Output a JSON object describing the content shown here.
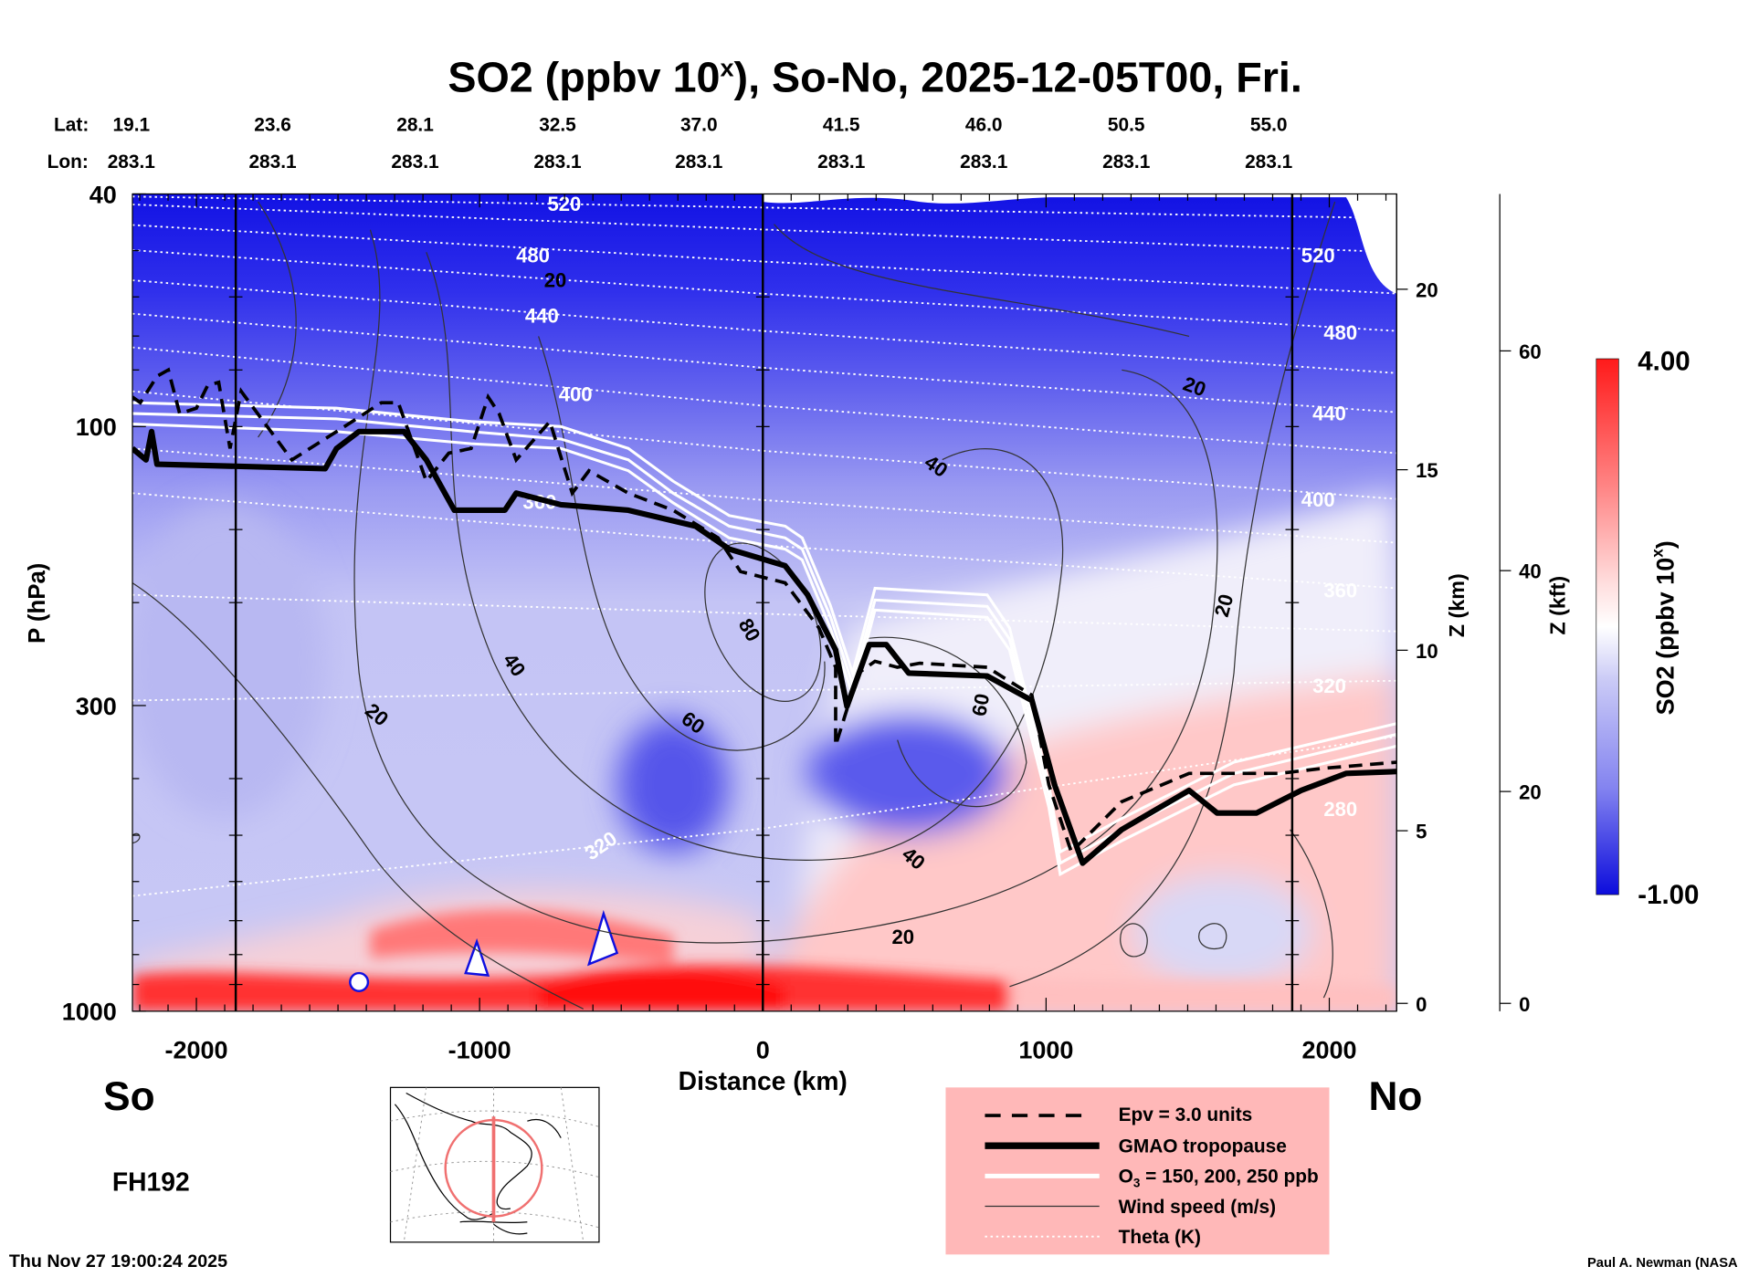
{
  "title": "SO2 (ppbv 10",
  "title_sup": "x",
  "title_rest": "), So-No, 2025-12-05T00, Fri.",
  "lat_label": "Lat:",
  "lon_label": "Lon:",
  "lats": [
    "19.1",
    "23.6",
    "28.1",
    "32.5",
    "37.0",
    "41.5",
    "46.0",
    "50.5",
    "55.0"
  ],
  "lons": [
    "283.1",
    "283.1",
    "283.1",
    "283.1",
    "283.1",
    "283.1",
    "283.1",
    "283.1",
    "283.1"
  ],
  "left_end": "So",
  "right_end": "No",
  "forecast_hour": "FH192",
  "timestamp": "Thu Nov 27 19:00:24 2025",
  "credit": "Paul A. Newman (NASA",
  "colors": {
    "so2_high": "#ff1a1a",
    "so2_zero": "#ffffff",
    "so2_low": "#1010e0",
    "legend_bg": "#ffb8b8",
    "o3_ring": "#f07070"
  },
  "legend": {
    "epv": "Epv = 3.0 units",
    "tropopause": "GMAO tropopause",
    "o3_prefix": "O",
    "o3_sub": "3",
    "o3_rest": " = 150, 200, 250 ppb",
    "wind": "Wind speed (m/s)",
    "theta": "Theta (K)"
  },
  "colorbar": {
    "label": "SO2 (ppbv 10",
    "label_sup": "x",
    "label_end": ")",
    "max_label": "4.00",
    "min_label": "-1.00",
    "range": [
      -1.0,
      4.0
    ]
  },
  "chart_data": {
    "type": "heatmap",
    "title": "SO2 (ppbv 10^x), So-No, 2025-12-05T00, Fri.",
    "xlabel": "Distance (km)",
    "ylabel": "P (hPa)",
    "y2label": "Z (km)",
    "y3label": "Z (kft)",
    "xlim": [
      -2226,
      2238
    ],
    "ylim": [
      1000,
      40
    ],
    "yscale": "log",
    "x_ticks": [
      -2000,
      -1000,
      0,
      1000,
      2000
    ],
    "x_tick_labels": [
      "-2000",
      "-1000",
      "0",
      "1000",
      "2000"
    ],
    "y_ticks": [
      40,
      100,
      300,
      1000
    ],
    "y_tick_labels": [
      "40",
      "100",
      "300",
      "1000"
    ],
    "zkm_ticks": [
      "0",
      "5",
      "10",
      "15",
      "20"
    ],
    "zkft_ticks": [
      "0",
      "20",
      "40",
      "60"
    ],
    "section_lines_km": [
      -1861,
      0,
      1869
    ],
    "tropopause": [
      [
        -2226,
        109
      ],
      [
        -2178,
        114
      ],
      [
        -2158,
        102
      ],
      [
        -2139,
        116
      ],
      [
        -1545,
        118
      ],
      [
        -1505,
        109
      ],
      [
        -1426,
        102
      ],
      [
        -1267,
        102
      ],
      [
        -1188,
        114
      ],
      [
        -1089,
        139
      ],
      [
        -911,
        139
      ],
      [
        -871,
        130
      ],
      [
        -713,
        136
      ],
      [
        -475,
        139
      ],
      [
        -238,
        148
      ],
      [
        -119,
        162
      ],
      [
        79,
        173
      ],
      [
        158,
        194
      ],
      [
        257,
        241
      ],
      [
        297,
        301
      ],
      [
        376,
        236
      ],
      [
        436,
        236
      ],
      [
        515,
        264
      ],
      [
        792,
        267
      ],
      [
        950,
        294
      ],
      [
        1030,
        410
      ],
      [
        1129,
        558
      ],
      [
        1267,
        489
      ],
      [
        1505,
        419
      ],
      [
        1604,
        458
      ],
      [
        1743,
        458
      ],
      [
        1901,
        419
      ],
      [
        2059,
        392
      ],
      [
        2238,
        389
      ]
    ],
    "epv_3": [
      [
        -2226,
        89
      ],
      [
        -2198,
        91
      ],
      [
        -2139,
        82
      ],
      [
        -2099,
        80
      ],
      [
        -2059,
        95
      ],
      [
        -2000,
        93
      ],
      [
        -1960,
        85
      ],
      [
        -1921,
        84
      ],
      [
        -1881,
        109
      ],
      [
        -1842,
        87
      ],
      [
        -1663,
        114
      ],
      [
        -1505,
        102
      ],
      [
        -1347,
        91
      ],
      [
        -1287,
        91
      ],
      [
        -1188,
        124
      ],
      [
        -1109,
        111
      ],
      [
        -1030,
        109
      ],
      [
        -970,
        89
      ],
      [
        -931,
        95
      ],
      [
        -871,
        114
      ],
      [
        -752,
        98
      ],
      [
        -673,
        130
      ],
      [
        -614,
        119
      ],
      [
        -475,
        130
      ],
      [
        -317,
        139
      ],
      [
        -158,
        155
      ],
      [
        -79,
        177
      ],
      [
        79,
        185
      ],
      [
        198,
        221
      ],
      [
        257,
        258
      ],
      [
        257,
        351
      ],
      [
        337,
        264
      ],
      [
        396,
        252
      ],
      [
        475,
        258
      ],
      [
        554,
        254
      ],
      [
        792,
        258
      ],
      [
        950,
        288
      ],
      [
        1010,
        410
      ],
      [
        1089,
        534
      ],
      [
        1267,
        438
      ],
      [
        1505,
        392
      ],
      [
        1663,
        392
      ],
      [
        1822,
        392
      ],
      [
        1980,
        384
      ],
      [
        2238,
        375
      ]
    ],
    "o3_km": [
      -2226,
      -1505,
      -1030,
      -713,
      -475,
      -317,
      -119,
      79,
      139,
      238,
      317,
      396,
      792,
      871,
      1010,
      1050,
      1267,
      1663,
      2238
    ],
    "o3_lines": [
      {
        "ppb": 150,
        "hpa": [
          91,
          93,
          98,
          100,
          109,
          124,
          142,
          148,
          155,
          202,
          264,
          189,
          194,
          221,
          410,
          534,
          468,
          375,
          322
        ]
      },
      {
        "ppb": 200,
        "hpa": [
          95,
          97,
          102,
          105,
          114,
          130,
          148,
          155,
          162,
          211,
          276,
          198,
          203,
          231,
          428,
          558,
          489,
          392,
          336
        ]
      },
      {
        "ppb": 250,
        "hpa": [
          99,
          102,
          107,
          109,
          119,
          135,
          155,
          162,
          169,
          221,
          288,
          206,
          212,
          241,
          448,
          583,
          511,
          410,
          352
        ]
      }
    ],
    "theta_lines": [
      {
        "k": 540,
        "hpa_left": 40.4,
        "hpa_right": 44
      },
      {
        "k": 520,
        "hpa_left": 41.7,
        "hpa_right": 50.3
      },
      {
        "k": 500,
        "hpa_left": 45.2,
        "hpa_right": 59.2
      },
      {
        "k": 480,
        "hpa_left": 49.9,
        "hpa_right": 68.6
      },
      {
        "k": 460,
        "hpa_left": 56.2,
        "hpa_right": 81
      },
      {
        "k": 440,
        "hpa_left": 64.1,
        "hpa_right": 94.5
      },
      {
        "k": 420,
        "hpa_left": 73.2,
        "hpa_right": 111
      },
      {
        "k": 400,
        "hpa_left": 87,
        "hpa_right": 133
      },
      {
        "k": 380,
        "hpa_left": 109,
        "hpa_right": 158
      },
      {
        "k": 360,
        "hpa_left": 130,
        "hpa_right": 189
      },
      {
        "k": 340,
        "hpa_left": 194,
        "hpa_right": 224
      },
      {
        "k": 320,
        "hpa_left": 294,
        "hpa_right": 272
      },
      {
        "k": 300,
        "hpa_left": 635,
        "hpa_right": 339
      }
    ],
    "theta_labels": [
      "520",
      "480",
      "440",
      "400",
      "360",
      "320",
      "520",
      "480",
      "440",
      "400",
      "360",
      "320",
      "280"
    ],
    "wind_labels": [
      "20",
      "20",
      "20",
      "20",
      "20",
      "40",
      "40",
      "40",
      "60",
      "60",
      "80"
    ]
  }
}
